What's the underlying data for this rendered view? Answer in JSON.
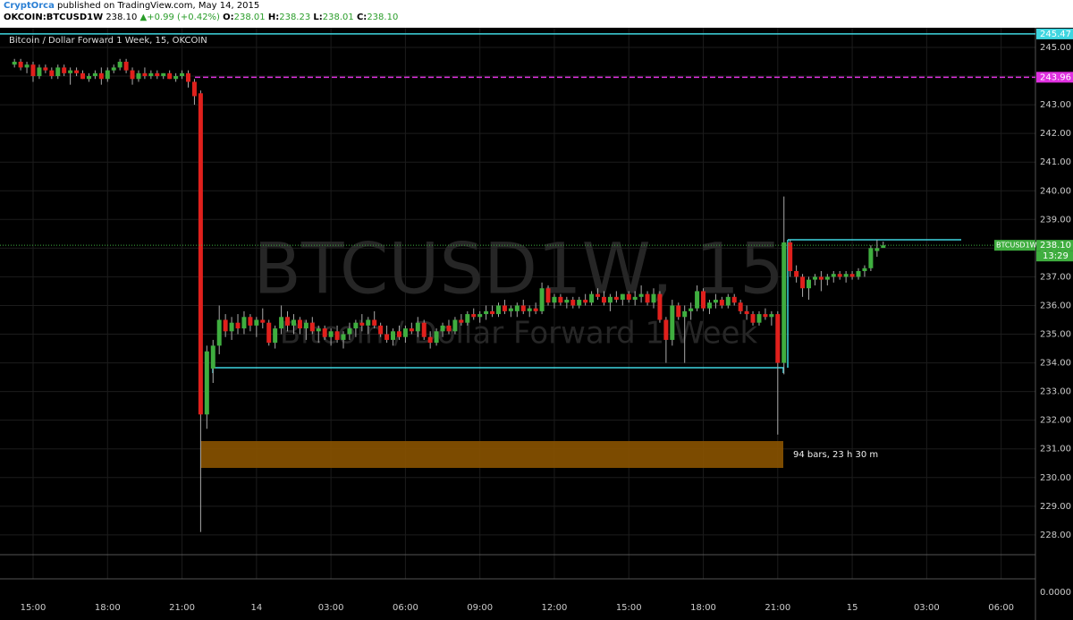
{
  "header": {
    "author": "CryptOrca",
    "published": "published on TradingView.com, May 14, 2015",
    "symbol": "OKCOIN:BTCUSD1W",
    "last": "238.10",
    "change": "▲+0.99 (+0.42%)",
    "ohlc_labels": [
      "O:",
      "H:",
      "L:",
      "C:"
    ],
    "ohlc_values": [
      "238.01",
      "238.23",
      "238.01",
      "238.10"
    ]
  },
  "chart_data": {
    "type": "candlestick",
    "title": "Bitcoin / Dollar Forward 1 Week, 15, OKCOIN",
    "watermark": "BTCUSD1W, 15",
    "watermark_subtitle": "Bitcoin / Dollar Forward 1 Week",
    "annotation": "94 bars, 23 h 30 m",
    "lower_pane_label": "0.0000",
    "up_color": "#3fae3f",
    "down_color": "#e0201c",
    "grid": true,
    "ylim": [
      227.31,
      245.53
    ],
    "yticks": [
      {
        "value": 228,
        "label": "228.00"
      },
      {
        "value": 229,
        "label": "229.00"
      },
      {
        "value": 230,
        "label": "230.00"
      },
      {
        "value": 231,
        "label": "231.00"
      },
      {
        "value": 232,
        "label": "232.00"
      },
      {
        "value": 233,
        "label": "233.00"
      },
      {
        "value": 234,
        "label": "234.00"
      },
      {
        "value": 235,
        "label": "235.00"
      },
      {
        "value": 236,
        "label": "236.00"
      },
      {
        "value": 237,
        "label": "237.00"
      },
      {
        "value": 238,
        "label": "238.00"
      },
      {
        "value": 239,
        "label": "239.00"
      },
      {
        "value": 240,
        "label": "240.00"
      },
      {
        "value": 241,
        "label": "241.00"
      },
      {
        "value": 242,
        "label": "242.00"
      },
      {
        "value": 243,
        "label": "243.00"
      },
      {
        "value": 244,
        "label": "244.00"
      },
      {
        "value": 245,
        "label": "245.00"
      }
    ],
    "price_lines": [
      {
        "value": 245.47,
        "color": "#3fd6e0",
        "style": "solid"
      },
      {
        "value": 243.96,
        "color": "#e030e0",
        "style": "dashed"
      },
      {
        "value": 238.1,
        "label": "238.10",
        "color": "#3fae3f",
        "style": "dotted",
        "name": "BTCUSD1W",
        "countdown": "13:29"
      }
    ],
    "categories": [
      null,
      null,
      null,
      "15:00",
      null,
      null,
      null,
      null,
      null,
      null,
      null,
      null,
      null,
      null,
      null,
      "18:00",
      null,
      null,
      null,
      null,
      null,
      null,
      null,
      null,
      null,
      null,
      null,
      "21:00",
      null,
      null,
      null,
      null,
      null,
      null,
      null,
      null,
      null,
      null,
      null,
      "14",
      null,
      null,
      null,
      null,
      null,
      null,
      null,
      null,
      null,
      null,
      null,
      "03:00",
      null,
      null,
      null,
      null,
      null,
      null,
      null,
      null,
      null,
      null,
      null,
      "06:00",
      null,
      null,
      null,
      null,
      null,
      null,
      null,
      null,
      null,
      null,
      null,
      "09:00",
      null,
      null,
      null,
      null,
      null,
      null,
      null,
      null,
      null,
      null,
      null,
      "12:00",
      null,
      null,
      null,
      null,
      null,
      null,
      null,
      null,
      null,
      null,
      null,
      "15:00",
      null,
      null,
      null,
      null,
      null,
      null,
      null,
      null,
      null,
      null,
      null,
      "18:00",
      null,
      null,
      null,
      null,
      null,
      null,
      null,
      null,
      null,
      null,
      null,
      "21:00",
      null,
      null,
      null,
      null,
      null,
      null,
      null,
      null,
      null,
      null,
      null,
      "15",
      null,
      null,
      null,
      null,
      null,
      null,
      null,
      null,
      null,
      null,
      null,
      "03:00",
      null,
      null,
      null,
      null,
      null,
      null,
      null,
      null,
      null,
      null,
      null,
      "06:00",
      null,
      null,
      null,
      null,
      null
    ],
    "ohlc": [
      [
        244.4,
        244.6,
        244.3,
        244.5
      ],
      [
        244.5,
        244.6,
        244.2,
        244.3
      ],
      [
        244.3,
        244.5,
        244.1,
        244.4
      ],
      [
        244.4,
        244.5,
        243.8,
        244.0
      ],
      [
        244.0,
        244.4,
        243.9,
        244.3
      ],
      [
        244.3,
        244.4,
        244.1,
        244.2
      ],
      [
        244.2,
        244.3,
        243.9,
        244.0
      ],
      [
        244.0,
        244.4,
        243.9,
        244.3
      ],
      [
        244.3,
        244.4,
        244.0,
        244.1
      ],
      [
        244.1,
        244.3,
        243.7,
        244.2
      ],
      [
        244.2,
        244.3,
        244.0,
        244.1
      ],
      [
        244.1,
        244.2,
        243.9,
        243.9
      ],
      [
        243.9,
        244.1,
        243.8,
        244.0
      ],
      [
        244.0,
        244.2,
        243.9,
        244.1
      ],
      [
        244.1,
        244.3,
        243.7,
        243.9
      ],
      [
        243.9,
        244.3,
        243.8,
        244.2
      ],
      [
        244.2,
        244.4,
        244.1,
        244.3
      ],
      [
        244.3,
        244.6,
        244.2,
        244.5
      ],
      [
        244.5,
        244.6,
        244.1,
        244.2
      ],
      [
        244.2,
        244.3,
        243.7,
        243.9
      ],
      [
        243.9,
        244.2,
        243.8,
        244.1
      ],
      [
        244.1,
        244.3,
        243.9,
        244.0
      ],
      [
        244.0,
        244.2,
        243.9,
        244.1
      ],
      [
        244.1,
        244.2,
        243.9,
        244.0
      ],
      [
        244.0,
        244.1,
        243.9,
        244.1
      ],
      [
        244.1,
        244.2,
        243.9,
        243.9
      ],
      [
        243.9,
        244.1,
        243.8,
        244.0
      ],
      [
        244.0,
        244.2,
        243.9,
        244.1
      ],
      [
        244.1,
        244.2,
        243.6,
        243.8
      ],
      [
        243.8,
        243.9,
        243.0,
        243.3
      ],
      [
        243.4,
        243.5,
        228.1,
        232.2
      ],
      [
        232.2,
        234.6,
        231.7,
        234.4
      ],
      [
        233.8,
        234.8,
        233.3,
        234.6
      ],
      [
        234.6,
        236.0,
        234.3,
        235.5
      ],
      [
        235.5,
        235.7,
        234.9,
        235.1
      ],
      [
        235.1,
        235.6,
        234.8,
        235.4
      ],
      [
        235.4,
        235.7,
        235.0,
        235.2
      ],
      [
        235.2,
        235.8,
        235.0,
        235.6
      ],
      [
        235.6,
        235.7,
        235.1,
        235.3
      ],
      [
        235.3,
        235.6,
        234.9,
        235.5
      ],
      [
        235.5,
        235.9,
        235.2,
        235.4
      ],
      [
        235.4,
        235.5,
        234.6,
        234.7
      ],
      [
        234.7,
        235.3,
        234.5,
        235.2
      ],
      [
        235.2,
        236.0,
        235.0,
        235.6
      ],
      [
        235.6,
        235.8,
        235.1,
        235.3
      ],
      [
        235.3,
        235.7,
        235.0,
        235.5
      ],
      [
        235.5,
        235.6,
        235.0,
        235.2
      ],
      [
        235.2,
        235.5,
        234.8,
        235.4
      ],
      [
        235.4,
        235.6,
        235.0,
        235.1
      ],
      [
        235.1,
        235.3,
        234.7,
        235.2
      ],
      [
        235.2,
        235.3,
        234.8,
        234.9
      ],
      [
        234.9,
        235.2,
        234.6,
        235.1
      ],
      [
        235.1,
        235.3,
        234.7,
        234.8
      ],
      [
        234.8,
        235.1,
        234.5,
        235.0
      ],
      [
        235.0,
        235.4,
        234.8,
        235.2
      ],
      [
        235.2,
        235.5,
        234.9,
        235.4
      ],
      [
        235.4,
        235.7,
        235.1,
        235.3
      ],
      [
        235.3,
        235.6,
        235.0,
        235.5
      ],
      [
        235.5,
        235.8,
        235.2,
        235.3
      ],
      [
        235.3,
        235.4,
        234.9,
        235.0
      ],
      [
        235.0,
        235.3,
        234.7,
        234.8
      ],
      [
        234.8,
        235.2,
        234.6,
        235.1
      ],
      [
        235.1,
        235.3,
        234.8,
        234.9
      ],
      [
        234.9,
        235.3,
        234.7,
        235.2
      ],
      [
        235.2,
        235.4,
        235.0,
        235.1
      ],
      [
        235.1,
        235.6,
        234.9,
        235.4
      ],
      [
        235.4,
        235.5,
        234.8,
        234.9
      ],
      [
        234.9,
        235.1,
        234.5,
        234.7
      ],
      [
        234.7,
        235.2,
        234.6,
        235.1
      ],
      [
        235.1,
        235.4,
        234.9,
        235.3
      ],
      [
        235.3,
        235.5,
        235.0,
        235.1
      ],
      [
        235.1,
        235.6,
        235.0,
        235.5
      ],
      [
        235.5,
        235.7,
        235.3,
        235.4
      ],
      [
        235.4,
        235.8,
        235.3,
        235.7
      ],
      [
        235.7,
        235.9,
        235.5,
        235.6
      ],
      [
        235.6,
        235.8,
        235.4,
        235.7
      ],
      [
        235.7,
        236.0,
        235.5,
        235.8
      ],
      [
        235.8,
        236.0,
        235.6,
        235.7
      ],
      [
        235.7,
        236.1,
        235.6,
        236.0
      ],
      [
        236.0,
        236.2,
        235.7,
        235.8
      ],
      [
        235.8,
        236.0,
        235.6,
        235.9
      ],
      [
        235.8,
        236.1,
        235.6,
        236.0
      ],
      [
        236.0,
        236.2,
        235.7,
        235.8
      ],
      [
        235.8,
        236.0,
        235.6,
        235.9
      ],
      [
        235.9,
        236.1,
        235.7,
        235.8
      ],
      [
        235.8,
        236.8,
        235.7,
        236.6
      ],
      [
        236.6,
        236.7,
        236.0,
        236.1
      ],
      [
        236.1,
        236.4,
        235.9,
        236.3
      ],
      [
        236.3,
        236.4,
        236.0,
        236.1
      ],
      [
        236.1,
        236.3,
        235.9,
        236.2
      ],
      [
        236.2,
        236.3,
        235.9,
        236.0
      ],
      [
        236.0,
        236.3,
        235.9,
        236.2
      ],
      [
        236.2,
        236.4,
        236.0,
        236.1
      ],
      [
        236.1,
        236.5,
        236.0,
        236.4
      ],
      [
        236.4,
        236.6,
        236.2,
        236.3
      ],
      [
        236.3,
        236.5,
        236.0,
        236.1
      ],
      [
        236.1,
        236.4,
        235.8,
        236.3
      ],
      [
        236.3,
        236.5,
        236.1,
        236.2
      ],
      [
        236.2,
        236.4,
        236.0,
        236.4
      ],
      [
        236.4,
        236.5,
        236.1,
        236.2
      ],
      [
        236.2,
        236.5,
        236.0,
        236.3
      ],
      [
        236.3,
        236.7,
        236.1,
        236.4
      ],
      [
        236.4,
        236.5,
        236.0,
        236.1
      ],
      [
        236.1,
        236.6,
        235.9,
        236.4
      ],
      [
        236.4,
        236.5,
        235.4,
        235.5
      ],
      [
        235.5,
        235.6,
        234.0,
        234.8
      ],
      [
        234.8,
        236.2,
        234.6,
        236.0
      ],
      [
        236.0,
        236.1,
        235.5,
        235.6
      ],
      [
        235.6,
        236.0,
        234.0,
        235.8
      ],
      [
        235.8,
        236.1,
        235.5,
        235.9
      ],
      [
        235.9,
        236.7,
        235.8,
        236.5
      ],
      [
        236.5,
        236.6,
        235.8,
        235.9
      ],
      [
        235.9,
        236.2,
        235.7,
        236.1
      ],
      [
        236.1,
        236.4,
        235.9,
        236.2
      ],
      [
        236.2,
        236.3,
        235.9,
        236.0
      ],
      [
        236.0,
        236.4,
        235.9,
        236.3
      ],
      [
        236.3,
        236.4,
        236.0,
        236.1
      ],
      [
        236.1,
        236.2,
        235.7,
        235.8
      ],
      [
        235.8,
        236.0,
        235.5,
        235.7
      ],
      [
        235.7,
        235.8,
        235.3,
        235.4
      ],
      [
        235.4,
        235.8,
        235.3,
        235.7
      ],
      [
        235.7,
        235.9,
        235.5,
        235.6
      ],
      [
        235.6,
        235.8,
        235.3,
        235.7
      ],
      [
        235.7,
        235.8,
        231.5,
        234.0
      ],
      [
        234.0,
        239.8,
        233.6,
        238.2
      ],
      [
        238.2,
        238.3,
        237.0,
        237.2
      ],
      [
        237.2,
        237.4,
        236.8,
        237.0
      ],
      [
        237.0,
        237.1,
        236.3,
        236.6
      ],
      [
        236.6,
        237.0,
        236.2,
        236.9
      ],
      [
        236.9,
        237.1,
        236.7,
        237.0
      ],
      [
        237.0,
        237.2,
        236.5,
        236.9
      ],
      [
        236.9,
        237.1,
        236.7,
        237.0
      ],
      [
        237.0,
        237.2,
        236.8,
        237.1
      ],
      [
        237.1,
        237.2,
        236.9,
        237.0
      ],
      [
        237.0,
        237.2,
        236.8,
        237.1
      ],
      [
        237.1,
        237.2,
        236.9,
        237.0
      ],
      [
        237.0,
        237.3,
        236.9,
        237.2
      ],
      [
        237.2,
        237.4,
        237.0,
        237.3
      ],
      [
        237.3,
        238.1,
        237.2,
        238.0
      ],
      [
        237.9,
        238.3,
        237.7,
        238.0
      ],
      [
        238.01,
        238.23,
        238.01,
        238.1
      ],
      null,
      null,
      null,
      null,
      null,
      null,
      null,
      null,
      null,
      null,
      null,
      null,
      null,
      null,
      null,
      null,
      null,
      null,
      null,
      null,
      null,
      null,
      null,
      null
    ]
  }
}
